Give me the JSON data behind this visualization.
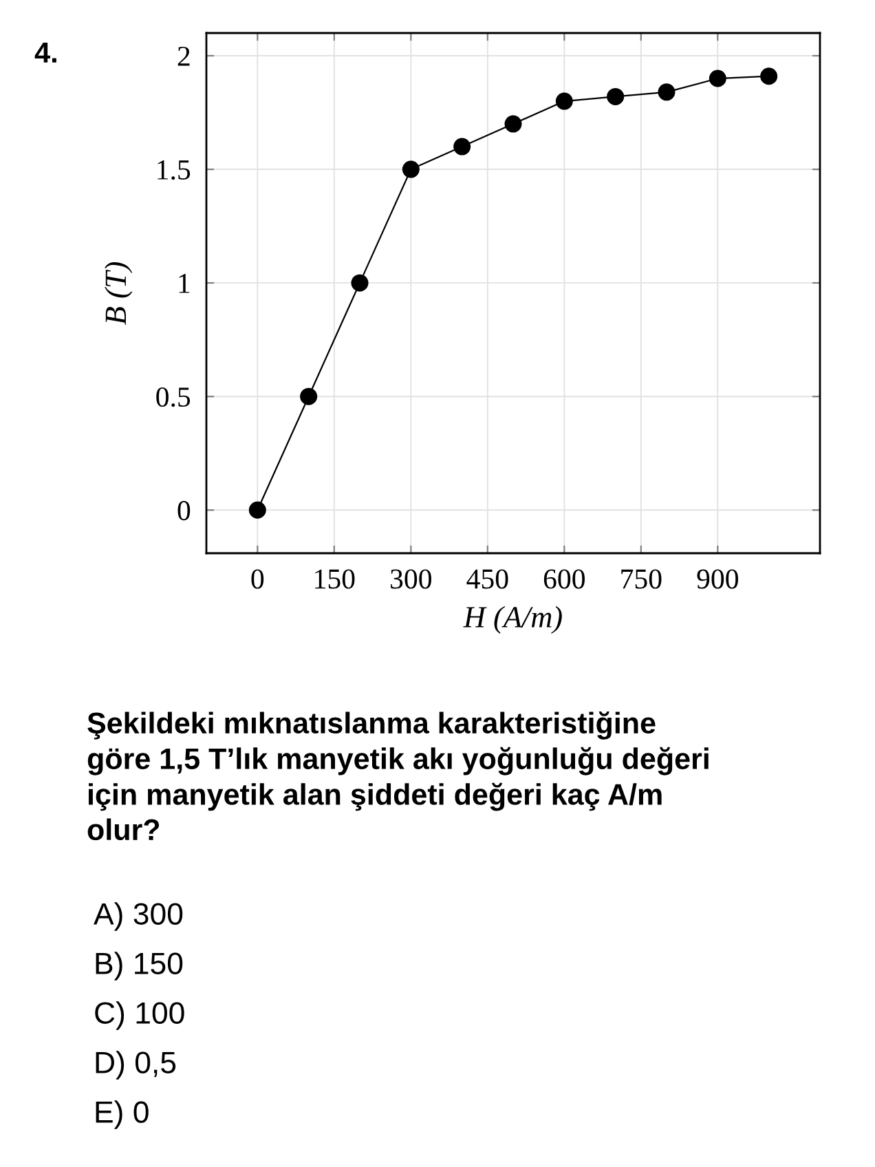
{
  "chart_data": {
    "type": "line",
    "xlabel": "H (A/m)",
    "ylabel": "B (T)",
    "x": [
      0,
      100,
      200,
      300,
      400,
      500,
      600,
      700,
      800,
      900,
      1000
    ],
    "series": [
      {
        "color": "#000000",
        "values": [
          0,
          0.5,
          1,
          1.5,
          1.6,
          1.7,
          1.8,
          1.82,
          1.84,
          1.9,
          1.91
        ]
      }
    ],
    "xlim": [
      -100,
      1100
    ],
    "ylim": [
      -0.19,
      2.1
    ],
    "xticks": [
      0,
      150,
      300,
      450,
      600,
      750,
      900
    ],
    "yticks": [
      0,
      0.5,
      1,
      1.5,
      2
    ],
    "grid": true,
    "marker": "circle",
    "line_style": "solid",
    "annotations": [
      "4.",
      "Şekildeki mıknatıslanma karakteristiğine\ngöre 1,5 T’lık manyetik akı yoğunluğu değeri\niçin manyetik alan şiddeti değeri kaç A/m\nolur?",
      "A) 300",
      "B) 150",
      "C) 100",
      "D) 0,5",
      "E) 0"
    ]
  }
}
